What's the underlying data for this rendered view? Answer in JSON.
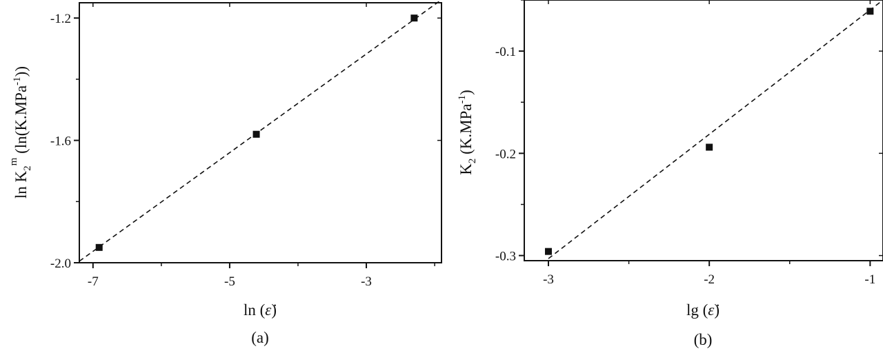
{
  "chart_data": [
    {
      "type": "scatter",
      "panel_label": "(a)",
      "xlabel": "ln (ε̇)",
      "xlabel_prefix": "ln (",
      "xlabel_suffix": ")",
      "ylabel": "ln K2m (ln(K.MPa-1))",
      "ylabel_parts": {
        "pre": "ln K",
        "sub": "2",
        "sup": "m",
        "post": " (ln(K.MPa",
        "post_sup": "-1",
        "end": "))"
      },
      "xlim": [
        -7.2,
        -1.9
      ],
      "ylim": [
        -2.0,
        -1.15
      ],
      "xticks": [
        -7,
        -5,
        -3
      ],
      "yticks": [
        -2.0,
        -1.6,
        -1.2
      ],
      "xtick_labels": [
        "-7",
        "-5",
        "-3"
      ],
      "ytick_labels": [
        "-2.0",
        "-1.6",
        "-1.2"
      ],
      "grid": false,
      "series": [
        {
          "x": [
            -6.91,
            -4.61,
            -2.3
          ],
          "y": [
            -1.95,
            -1.58,
            -1.2
          ]
        }
      ],
      "fit_line": {
        "style": "dashed",
        "x": [
          -7.2,
          -1.9
        ],
        "y": [
          -1.995,
          -1.14
        ]
      }
    },
    {
      "type": "scatter",
      "panel_label": "(b)",
      "xlabel": "lg (ε̇)",
      "xlabel_prefix": "lg (",
      "xlabel_suffix": ")",
      "ylabel": "K2 (K.MPa-1)",
      "ylabel_parts": {
        "pre": "K",
        "sub": "2",
        "sup": "",
        "post": " (K.MPa",
        "post_sup": "-1",
        "end": ")"
      },
      "xlim": [
        -3.15,
        -0.92
      ],
      "ylim": [
        -0.305,
        -0.05
      ],
      "xticks": [
        -3,
        -2,
        -1
      ],
      "yticks": [
        -0.3,
        -0.2,
        -0.1
      ],
      "xtick_labels": [
        "-3",
        "-2",
        "-1"
      ],
      "ytick_labels": [
        "-0.3",
        "-0.2",
        "-0.1"
      ],
      "grid": false,
      "series": [
        {
          "x": [
            -3,
            -2,
            -1
          ],
          "y": [
            -0.296,
            -0.194,
            -0.061
          ]
        }
      ],
      "fit_line": {
        "style": "dashed",
        "x": [
          -3.0,
          -0.92
        ],
        "y": [
          -0.303,
          -0.05
        ]
      }
    }
  ]
}
